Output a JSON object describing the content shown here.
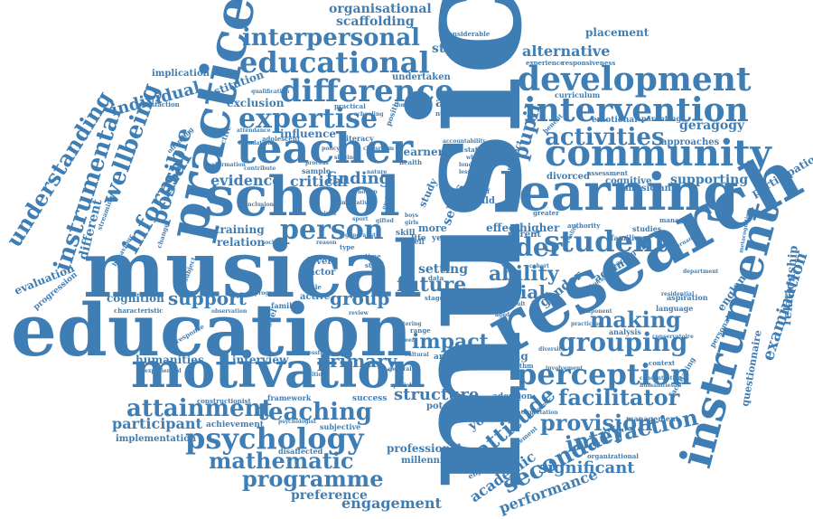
{
  "theme": {
    "word_color": "#3f7eb4",
    "background": "#ffffff"
  },
  "words": {
    "music": "music",
    "musical": "musical",
    "education": "education",
    "research": "research",
    "learning": "learning",
    "school": "school",
    "practice": "practice",
    "motivation": "motivation",
    "instrument": "instrument",
    "teacher": "teacher",
    "community": "community",
    "development": "development",
    "intervention": "intervention",
    "educational": "educational",
    "interpersonal": "interpersonal",
    "difference": "difference",
    "expertise": "expertise",
    "psychology": "psychology",
    "perception": "perception",
    "student": "student",
    "grouping": "grouping",
    "attainment": "attainment",
    "teaching": "teaching",
    "older": "older",
    "activities": "activities",
    "secondary": "secondary",
    "attitude": "attitude",
    "facilitator": "facilitator",
    "person": "person",
    "instrumental": "instrumental",
    "understanding": "understanding",
    "wellbeing": "wellbeing",
    "informal": "informal",
    "possible": "possible",
    "individual": "individual",
    "mathematic": "mathematic",
    "programme": "programme",
    "interaction": "interaction",
    "provision": "provision",
    "making": "making",
    "ability": "ability",
    "social": "social",
    "future": "future",
    "impact": "impact",
    "support": "support",
    "group": "group",
    "evidence": "evidence",
    "finding": "finding",
    "critical": "critical",
    "primary": "primary",
    "structure": "structure",
    "significant": "significant",
    "participant": "participant",
    "engagement": "engagement",
    "preference": "preference",
    "professional": "professional",
    "millennium": "millennium",
    "performance": "performance",
    "academic": "academic",
    "examination": "examination",
    "relationship": "relationship",
    "participation": "participation",
    "questionnaire": "questionnaire",
    "approach": "approach",
    "strategies": "strategies",
    "alternative": "alternative",
    "placement": "placement",
    "organisational": "organisational",
    "scaffolding": "scaffolding",
    "pupil": "pupil",
    "geragogy": "geragogy",
    "supporting": "supporting",
    "cognitive": "cognitive",
    "musician": "musician",
    "approaches": "approaches",
    "emotional": "emotional",
    "parenting": "parenting",
    "gender": "gender",
    "ageing": "ageing",
    "england": "england",
    "language": "language",
    "personal": "personal",
    "cognition": "cognition",
    "evaluation": "evaluation",
    "progression": "progression",
    "different": "different",
    "implication": "implication",
    "satisfaction": "satisfaction",
    "humanities": "humanities",
    "interview": "interview",
    "implementation": "implementation",
    "achievement": "achievement",
    "disaffected": "disaffected",
    "subjective": "subjective",
    "framework": "framework",
    "success": "success",
    "young": "young",
    "popular": "popular",
    "adoption": "adoption",
    "management": "management",
    "briefing": "briefing",
    "article": "article",
    "potential": "potential",
    "training": "training",
    "relation": "relation",
    "exclusion": "exclusion",
    "influence": "influence",
    "institution": "institution",
    "undertaken": "undertaken",
    "considerable": "considerable",
    "experience": "experience",
    "responsiveness": "responsiveness",
    "curriculum": "curriculum",
    "divorced": "divorced",
    "assessment": "assessment",
    "parent": "parent",
    "higher": "higher",
    "effect": "effect",
    "setting": "setting",
    "more": "more",
    "life": "life",
    "skill": "skill",
    "year": "year",
    "selves": "selves",
    "study": "study",
    "child": "child",
    "belief": "belief",
    "level": "level",
    "factor": "factor",
    "active": "active",
    "family": "family",
    "model": "model",
    "control": "control",
    "data": "data",
    "learner": "learner",
    "health": "health",
    "sample": "sample",
    "literacy": "literacy",
    "practical": "practical",
    "positive": "positive",
    "numeracy": "numeracy",
    "adolescent": "adolescent",
    "attendance": "attendance",
    "effective": "effective",
    "offending": "offending",
    "change": "change",
    "behaviour": "behaviour",
    "streaming": "streaming",
    "characteristic": "characteristic",
    "response": "response",
    "subject": "subject",
    "constructionist": "constructionist",
    "enjoyment": "enjoyment",
    "statement": "statement",
    "organizational": "organizational",
    "aspiration": "aspiration",
    "context": "context",
    "families": "families",
    "studies": "studies",
    "managed": "managed",
    "authority": "authority",
    "reading": "reading",
    "analysis": "analysis",
    "rhythm": "rhythm",
    "department": "department",
    "residential": "residential",
    "facilitating": "facilitating",
    "concentration": "concentration",
    "humanitiesall": "humanitiesall",
    "greater": "greater",
    "benefit": "benefit",
    "project": "project",
    "whole": "whole",
    "london": "london",
    "lesson": "lesson",
    "staff": "staff",
    "role": "role",
    "type": "type",
    "style": "style",
    "time": "time",
    "range": "range",
    "self": "self",
    "stage": "stage",
    "scale": "scale",
    "review": "review",
    "progress": "progress",
    "observation": "observation",
    "society": "society",
    "reason": "reason",
    "complexity": "complexity",
    "inclusion": "inclusion",
    "foundation": "foundation",
    "affirmation": "affirmation",
    "contribute": "contribute",
    "qualification": "qualification",
    "governance": "governance",
    "metacognition": "metacognition",
    "conservatoire": "conservatoire",
    "involvement": "involvement",
    "diversity": "diversity",
    "identity": "identity",
    "cultural": "cultural",
    "successful": "successful",
    "psychologist": "psychologist",
    "experienced": "experienced",
    "mixed": "mixed",
    "cohort": "cohort",
    "nature": "nature",
    "science": "science",
    "report": "report",
    "accountability": "accountability",
    "interpretation": "interpretation",
    "dynamic": "dynamic",
    "practicing": "practicing",
    "component": "component",
    "fostering": "fostering",
    "gifted": "gifted",
    "quality": "quality",
    "lifelong": "lifelong",
    "innovative": "innovative",
    "explore": "explore",
    "notion": "notion",
    "generalist": "generalist",
    "classroom": "classroom",
    "schooling": "schooling",
    "singing": "singing",
    "policy": "policy",
    "process": "process",
    "sport": "sport",
    "boys": "boys",
    "girls": "girls",
    "peer": "peer",
    "aged": "aged",
    "adult": "adult",
    "general": "general",
    "specialist": "specialist",
    "tuition": "tuition"
  }
}
